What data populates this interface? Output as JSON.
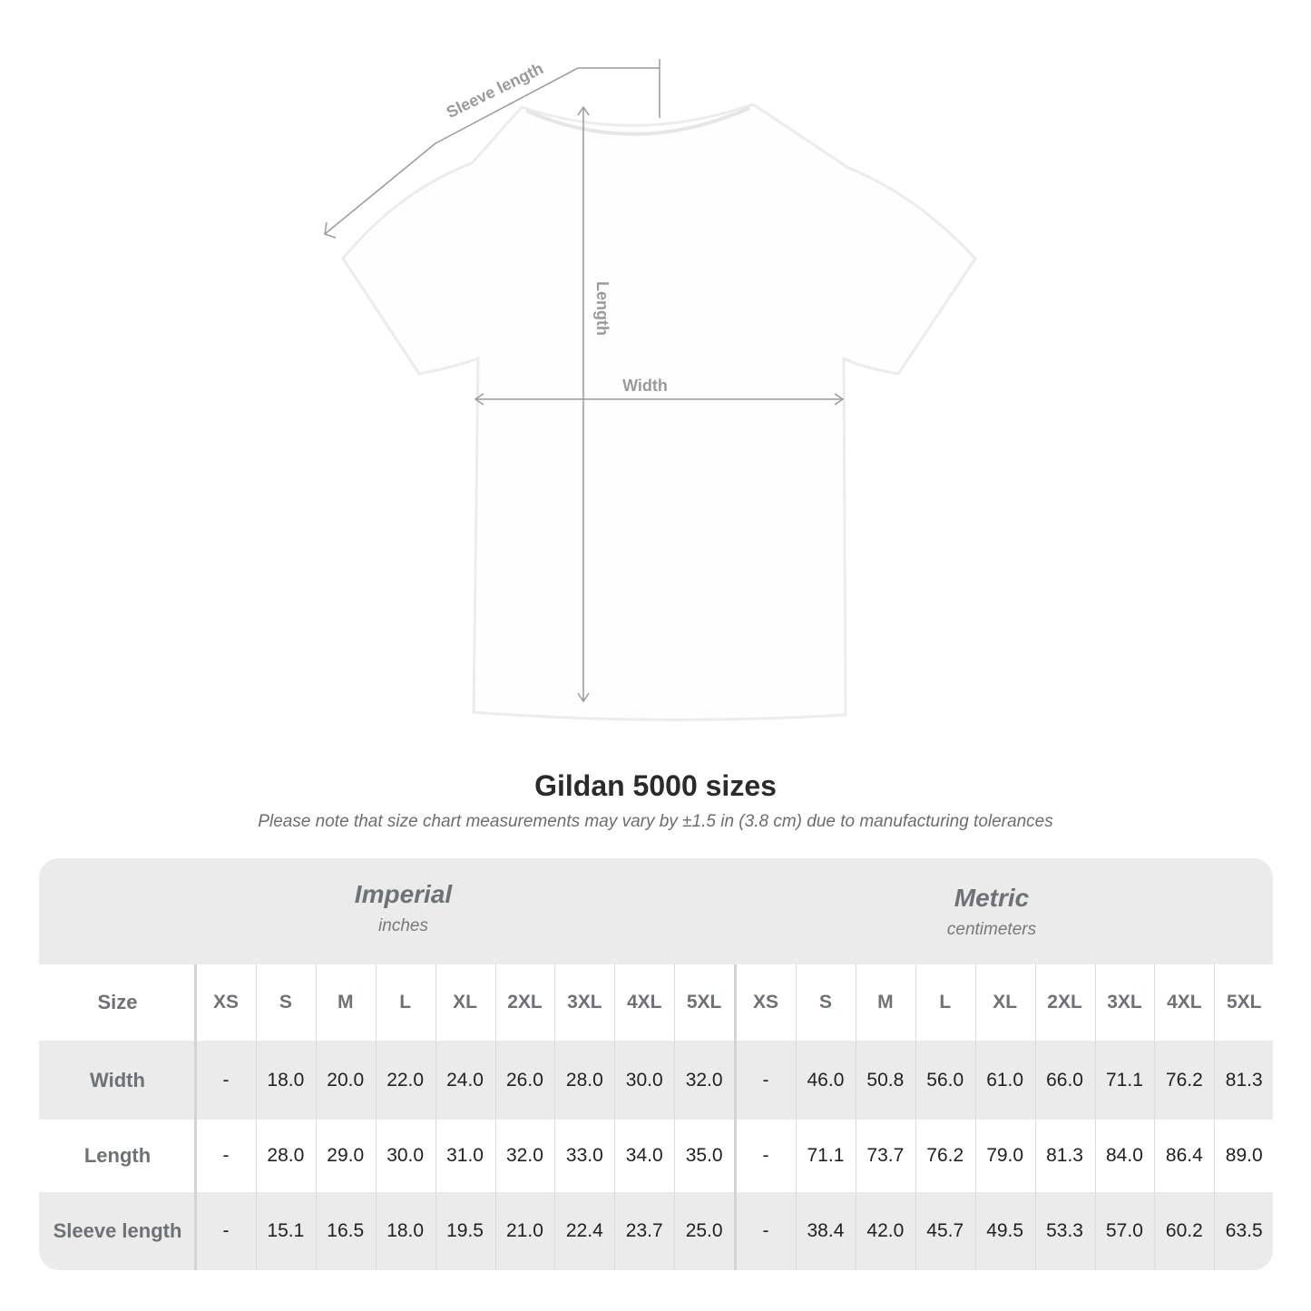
{
  "diagram": {
    "labels": {
      "sleeve": "Sleeve length",
      "length": "Length",
      "width": "Width"
    },
    "line_color": "#9a9a9a"
  },
  "title": "Gildan 5000 sizes",
  "subtitle": "Please note that size chart measurements may vary by ±1.5 in (3.8 cm) due to manufacturing tolerances",
  "table": {
    "imperial": {
      "name": "Imperial",
      "unit": "inches"
    },
    "metric": {
      "name": "Metric",
      "unit": "centimeters"
    },
    "size_label": "Size",
    "sizes": [
      "XS",
      "S",
      "M",
      "L",
      "XL",
      "2XL",
      "3XL",
      "4XL",
      "5XL"
    ],
    "rows": [
      {
        "label": "Width",
        "imperial": [
          "-",
          "18.0",
          "20.0",
          "22.0",
          "24.0",
          "26.0",
          "28.0",
          "30.0",
          "32.0"
        ],
        "metric": [
          "-",
          "46.0",
          "50.8",
          "56.0",
          "61.0",
          "66.0",
          "71.1",
          "76.2",
          "81.3"
        ]
      },
      {
        "label": "Length",
        "imperial": [
          "-",
          "28.0",
          "29.0",
          "30.0",
          "31.0",
          "32.0",
          "33.0",
          "34.0",
          "35.0"
        ],
        "metric": [
          "-",
          "71.1",
          "73.7",
          "76.2",
          "79.0",
          "81.3",
          "84.0",
          "86.4",
          "89.0"
        ]
      },
      {
        "label": "Sleeve length",
        "imperial": [
          "-",
          "15.1",
          "16.5",
          "18.0",
          "19.5",
          "21.0",
          "22.4",
          "23.7",
          "25.0"
        ],
        "metric": [
          "-",
          "38.4",
          "42.0",
          "45.7",
          "49.5",
          "53.3",
          "57.0",
          "60.2",
          "63.5"
        ]
      }
    ],
    "band_color": "#ebebeb"
  }
}
